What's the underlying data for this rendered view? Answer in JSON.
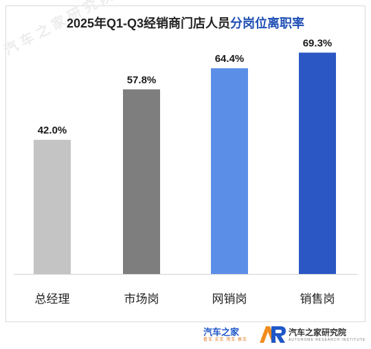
{
  "title_prefix": "2025年Q1-Q3经销商门店人员",
  "title_highlight": "分岗位离职率",
  "watermark": "汽车之家研究院",
  "chart_data": {
    "type": "bar",
    "title": "2025年Q1-Q3经销商门店人员分岗位离职率",
    "categories": [
      "总经理",
      "市场岗",
      "网销岗",
      "销售岗"
    ],
    "values": [
      42.0,
      57.8,
      64.4,
      69.3
    ],
    "value_labels": [
      "42.0%",
      "57.8%",
      "64.4%",
      "69.3%"
    ],
    "colors": [
      "#c4c4c4",
      "#7e7e7e",
      "#5b8ee6",
      "#2a57c4"
    ],
    "ylim": [
      0,
      75
    ],
    "grid": false,
    "legend": "none"
  },
  "footer": {
    "brand1_name": "汽车之家",
    "brand1_tagline": "看车 买车 用车 换车",
    "brand2_name": "汽车之家研究院",
    "brand2_en": "AUTOHOME RESEARCH INSTITUTE",
    "logo_colors": [
      "#f08c1e",
      "#1f57c8"
    ]
  }
}
